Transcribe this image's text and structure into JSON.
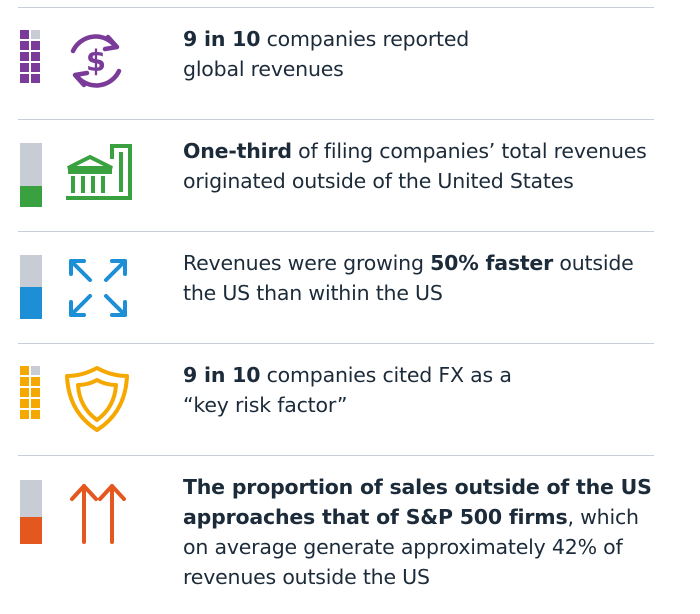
{
  "colors": {
    "purple": "#7b3c99",
    "green": "#3aa140",
    "blue": "#1d8fd6",
    "yellow": "#f5a800",
    "orange": "#e4571f",
    "light": "#c8cdd5"
  },
  "items": [
    {
      "icon": "dollar-cycle-icon",
      "meter": {
        "type": "waffle",
        "filled": 9,
        "total": 10
      },
      "line1": {
        "bold": "9 in 10",
        "rest": " companies reported"
      },
      "line2": "global revenues"
    },
    {
      "icon": "bank-building-icon",
      "meter": {
        "type": "bar",
        "value": 0.333
      },
      "line1": {
        "bold": "One-third",
        "rest": " of filing companies’ total revenues"
      },
      "line2": "originated outside of the United States"
    },
    {
      "icon": "expand-arrows-icon",
      "meter": {
        "type": "bar",
        "value": 0.5
      },
      "line1": {
        "pre": "Revenues were growing ",
        "bold": "50% faster",
        "rest": " outside"
      },
      "line2": "the US than within the US"
    },
    {
      "icon": "shield-icon",
      "meter": {
        "type": "waffle",
        "filled": 9,
        "total": 10
      },
      "line1": {
        "bold": "9 in 10",
        "rest": " companies cited FX as a"
      },
      "line2": "“key risk factor”"
    },
    {
      "icon": "up-arrows-icon",
      "meter": {
        "type": "bar",
        "value": 0.42
      },
      "line1": "The proportion of sales outside of the US",
      "line2": {
        "bold": "approaches that of S&P 500 firms",
        "rest": ", which"
      },
      "line3": "on average generate approximately 42% of",
      "line4": "revenues outside the US"
    }
  ]
}
